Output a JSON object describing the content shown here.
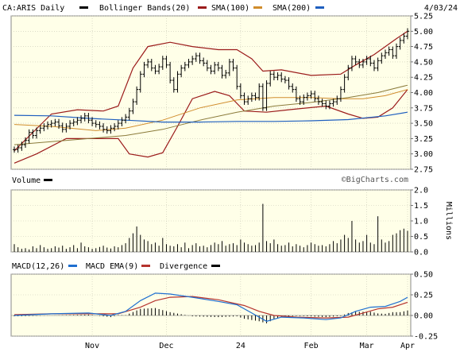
{
  "header": {
    "symbol": "CA:ARIS Daily",
    "date": "4/03/24",
    "legend": [
      {
        "label": "Bollinger Bands(20)",
        "color": "#000000"
      },
      {
        "label": "SMA(100)",
        "color": "#9b1b1b"
      },
      {
        "label": "SMA(200)",
        "color": "#d08c2c"
      },
      {
        "label": "",
        "color": "#1f5fbf"
      }
    ]
  },
  "watermark": "©BigCharts.com",
  "x_ticks": [
    "Nov",
    "Dec",
    "24",
    "Feb",
    "Mar",
    "Apr"
  ],
  "chart_data": [
    {
      "type": "bar",
      "subtype": "ohlc",
      "title": "CA:ARIS Daily",
      "ylim": [
        2.75,
        5.25
      ],
      "y_ticks": [
        "5.25",
        "5.00",
        "4.75",
        "4.50",
        "4.25",
        "4.00",
        "3.75",
        "3.50",
        "3.25",
        "3.00",
        "2.75"
      ],
      "grid": true,
      "close": [
        3.07,
        3.1,
        3.15,
        3.22,
        3.35,
        3.3,
        3.38,
        3.42,
        3.45,
        3.48,
        3.5,
        3.52,
        3.46,
        3.4,
        3.45,
        3.5,
        3.52,
        3.55,
        3.58,
        3.62,
        3.55,
        3.5,
        3.48,
        3.45,
        3.4,
        3.38,
        3.42,
        3.45,
        3.5,
        3.55,
        3.6,
        3.7,
        3.85,
        4.05,
        4.3,
        4.45,
        4.5,
        4.4,
        4.35,
        4.42,
        4.55,
        4.45,
        4.2,
        4.05,
        4.3,
        4.4,
        4.45,
        4.5,
        4.55,
        4.6,
        4.52,
        4.48,
        4.4,
        4.35,
        4.45,
        4.4,
        4.28,
        4.32,
        4.5,
        4.4,
        4.1,
        3.95,
        3.85,
        3.9,
        3.95,
        3.92,
        4.1,
        3.75,
        4.15,
        4.3,
        4.25,
        4.28,
        4.22,
        4.2,
        4.1,
        4.05,
        3.9,
        3.85,
        3.92,
        3.95,
        3.98,
        3.9,
        3.85,
        3.82,
        3.78,
        3.82,
        3.85,
        3.9,
        4.05,
        4.25,
        4.4,
        4.55,
        4.5,
        4.45,
        4.5,
        4.55,
        4.48,
        4.4,
        4.52,
        4.6,
        4.65,
        4.7,
        4.6,
        4.75,
        4.85,
        4.92,
        5.0
      ],
      "series": [
        {
          "name": "Bollinger Bands(20) upper",
          "values": [
            [
              0,
              3.05
            ],
            [
              10,
              3.65
            ],
            [
              17,
              3.72
            ],
            [
              24,
              3.7
            ],
            [
              28,
              3.78
            ],
            [
              32,
              4.4
            ],
            [
              36,
              4.75
            ],
            [
              42,
              4.82
            ],
            [
              48,
              4.75
            ],
            [
              55,
              4.7
            ],
            [
              60,
              4.7
            ],
            [
              64,
              4.55
            ],
            [
              67,
              4.35
            ],
            [
              72,
              4.37
            ],
            [
              80,
              4.28
            ],
            [
              88,
              4.3
            ],
            [
              92,
              4.45
            ],
            [
              97,
              4.62
            ],
            [
              100,
              4.75
            ],
            [
              103,
              4.88
            ],
            [
              106,
              5.0
            ]
          ]
        },
        {
          "name": "Bollinger Bands(20) lower",
          "values": [
            [
              0,
              2.85
            ],
            [
              6,
              3.0
            ],
            [
              14,
              3.25
            ],
            [
              22,
              3.25
            ],
            [
              28,
              3.25
            ],
            [
              31,
              3.0
            ],
            [
              36,
              2.95
            ],
            [
              40,
              3.02
            ],
            [
              44,
              3.45
            ],
            [
              48,
              3.9
            ],
            [
              54,
              4.02
            ],
            [
              58,
              3.95
            ],
            [
              62,
              3.7
            ],
            [
              68,
              3.68
            ],
            [
              74,
              3.72
            ],
            [
              84,
              3.78
            ],
            [
              90,
              3.65
            ],
            [
              94,
              3.58
            ],
            [
              98,
              3.6
            ],
            [
              102,
              3.75
            ],
            [
              106,
              4.05
            ]
          ]
        },
        {
          "name": "SMA(100)",
          "values": [
            [
              0,
              3.48
            ],
            [
              10,
              3.45
            ],
            [
              22,
              3.38
            ],
            [
              30,
              3.42
            ],
            [
              40,
              3.55
            ],
            [
              50,
              3.75
            ],
            [
              60,
              3.88
            ],
            [
              70,
              3.92
            ],
            [
              80,
              3.92
            ],
            [
              88,
              3.9
            ],
            [
              94,
              3.9
            ],
            [
              100,
              3.95
            ],
            [
              106,
              4.05
            ]
          ]
        },
        {
          "name": "SMA(200)",
          "values": [
            [
              0,
              3.15
            ],
            [
              10,
              3.2
            ],
            [
              20,
              3.25
            ],
            [
              30,
              3.3
            ],
            [
              40,
              3.4
            ],
            [
              50,
              3.55
            ],
            [
              60,
              3.68
            ],
            [
              70,
              3.78
            ],
            [
              80,
              3.84
            ],
            [
              90,
              3.92
            ],
            [
              98,
              4.0
            ],
            [
              106,
              4.12
            ]
          ]
        },
        {
          "name": "",
          "values": [
            [
              0,
              3.63
            ],
            [
              10,
              3.62
            ],
            [
              20,
              3.58
            ],
            [
              30,
              3.55
            ],
            [
              40,
              3.52
            ],
            [
              50,
              3.52
            ],
            [
              60,
              3.53
            ],
            [
              70,
              3.53
            ],
            [
              80,
              3.54
            ],
            [
              90,
              3.56
            ],
            [
              100,
              3.62
            ],
            [
              106,
              3.68
            ]
          ]
        }
      ]
    },
    {
      "type": "bar",
      "title": "Volume",
      "ylim": [
        0,
        2.0
      ],
      "y_ticks": [
        "2.0",
        "1.5",
        "1.0",
        "0.5",
        "0.0"
      ],
      "ylabel": "Millions",
      "grid": true,
      "values": [
        0.25,
        0.15,
        0.1,
        0.12,
        0.08,
        0.18,
        0.12,
        0.22,
        0.15,
        0.1,
        0.12,
        0.18,
        0.14,
        0.2,
        0.1,
        0.15,
        0.22,
        0.12,
        0.3,
        0.18,
        0.15,
        0.1,
        0.12,
        0.16,
        0.2,
        0.14,
        0.11,
        0.18,
        0.15,
        0.22,
        0.28,
        0.45,
        0.6,
        0.82,
        0.55,
        0.4,
        0.35,
        0.25,
        0.3,
        0.2,
        0.45,
        0.25,
        0.2,
        0.18,
        0.25,
        0.15,
        0.3,
        0.12,
        0.22,
        0.28,
        0.18,
        0.2,
        0.15,
        0.22,
        0.3,
        0.25,
        0.35,
        0.2,
        0.25,
        0.28,
        0.22,
        0.4,
        0.3,
        0.25,
        0.2,
        0.22,
        0.3,
        1.55,
        0.35,
        0.28,
        0.4,
        0.25,
        0.2,
        0.22,
        0.3,
        0.18,
        0.25,
        0.2,
        0.15,
        0.22,
        0.3,
        0.25,
        0.2,
        0.22,
        0.18,
        0.25,
        0.35,
        0.28,
        0.4,
        0.55,
        0.45,
        1.0,
        0.4,
        0.3,
        0.35,
        0.55,
        0.3,
        0.25,
        1.15,
        0.4,
        0.3,
        0.35,
        0.55,
        0.6,
        0.7,
        0.75,
        0.68
      ]
    },
    {
      "type": "line",
      "title": "MACD(12,26)",
      "ylim": [
        -0.25,
        0.5
      ],
      "y_ticks": [
        "0.50",
        "0.25",
        "0.00",
        "-0.25"
      ],
      "grid": true,
      "series": [
        {
          "name": "MACD(12,26)",
          "color": "#1f6fd0",
          "values": [
            [
              0,
              0.0
            ],
            [
              10,
              0.02
            ],
            [
              20,
              0.03
            ],
            [
              26,
              0.0
            ],
            [
              30,
              0.05
            ],
            [
              34,
              0.18
            ],
            [
              38,
              0.27
            ],
            [
              42,
              0.26
            ],
            [
              48,
              0.22
            ],
            [
              55,
              0.17
            ],
            [
              60,
              0.13
            ],
            [
              64,
              0.03
            ],
            [
              68,
              -0.07
            ],
            [
              72,
              -0.02
            ],
            [
              78,
              -0.03
            ],
            [
              84,
              -0.05
            ],
            [
              88,
              -0.03
            ],
            [
              92,
              0.05
            ],
            [
              96,
              0.1
            ],
            [
              100,
              0.11
            ],
            [
              104,
              0.17
            ],
            [
              106,
              0.22
            ]
          ]
        },
        {
          "name": "MACD EMA(9)",
          "color": "#b5332e",
          "values": [
            [
              0,
              0.01
            ],
            [
              10,
              0.02
            ],
            [
              20,
              0.02
            ],
            [
              28,
              0.02
            ],
            [
              34,
              0.1
            ],
            [
              38,
              0.18
            ],
            [
              42,
              0.22
            ],
            [
              48,
              0.23
            ],
            [
              55,
              0.19
            ],
            [
              62,
              0.12
            ],
            [
              66,
              0.05
            ],
            [
              70,
              0.0
            ],
            [
              76,
              -0.02
            ],
            [
              84,
              -0.03
            ],
            [
              90,
              -0.02
            ],
            [
              94,
              0.03
            ],
            [
              98,
              0.08
            ],
            [
              102,
              0.1
            ],
            [
              106,
              0.16
            ]
          ]
        }
      ]
    }
  ]
}
